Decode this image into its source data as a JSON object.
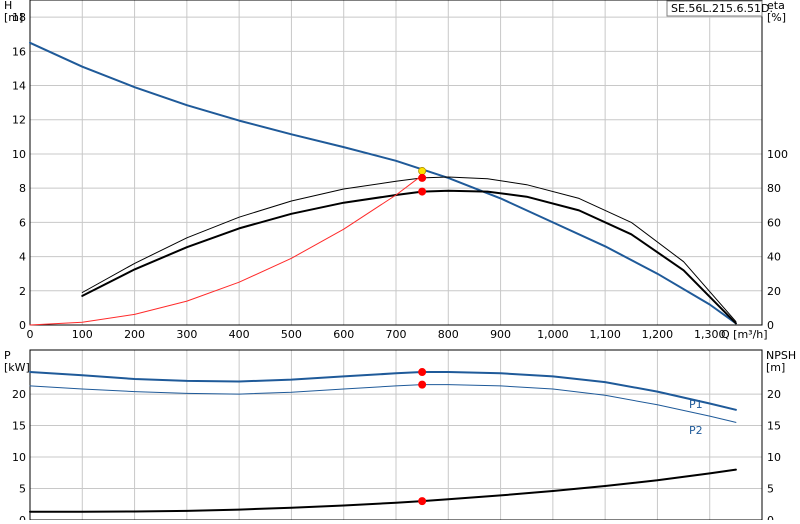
{
  "model": "SE.56L.215.6.51D.",
  "colors": {
    "curve_blue": "#1f5a99",
    "curve_black": "#000000",
    "npsh_red": "#ff2a2a",
    "op_point_red": "#ff0000",
    "op_point_yellow": "#ffe400",
    "grid": "#c8c8c8"
  },
  "chart_data": [
    {
      "type": "line",
      "ylabel_left": "H",
      "yunit_left": "[m]",
      "ylabel_right": "eta",
      "yunit_right": "[%]",
      "xlabel": "Q [m³/h]",
      "xlim": [
        0,
        1400
      ],
      "ylim_left": [
        0,
        19
      ],
      "ylim_right": [
        0,
        190
      ],
      "xticks": [
        0,
        100,
        200,
        300,
        400,
        500,
        600,
        700,
        800,
        900,
        1000,
        1100,
        1200,
        1300
      ],
      "xtick_labels": [
        "0",
        "100",
        "200",
        "300",
        "400",
        "500",
        "600",
        "700",
        "800",
        "900",
        "1,000",
        "1,100",
        "1,200",
        "1,300"
      ],
      "yticks_left": [
        0,
        2,
        4,
        6,
        8,
        10,
        12,
        14,
        16,
        18
      ],
      "yticks_right": [
        0,
        20,
        40,
        60,
        80,
        100
      ],
      "grid": true,
      "series": [
        {
          "axis": "left",
          "color": "#1f5a99",
          "width": 2,
          "x": [
            0,
            100,
            200,
            300,
            400,
            500,
            600,
            700,
            800,
            900,
            1000,
            1100,
            1200,
            1300,
            1350
          ],
          "y": [
            16.5,
            15.1,
            13.9,
            12.85,
            11.95,
            11.15,
            10.4,
            9.6,
            8.6,
            7.4,
            6.0,
            4.6,
            3.0,
            1.2,
            0.1
          ]
        },
        {
          "axis": "right",
          "color": "#000000",
          "width": 1,
          "x": [
            100,
            200,
            300,
            400,
            500,
            600,
            700,
            750,
            800,
            875,
            950,
            1050,
            1150,
            1250,
            1350
          ],
          "y": [
            19,
            36,
            51,
            63,
            72.5,
            79.5,
            84,
            86,
            86.5,
            85.5,
            82,
            74,
            60,
            37,
            2
          ]
        },
        {
          "axis": "right",
          "color": "#000000",
          "width": 2,
          "x": [
            100,
            200,
            300,
            400,
            500,
            600,
            700,
            750,
            800,
            875,
            950,
            1050,
            1150,
            1250,
            1350
          ],
          "y": [
            17,
            32.5,
            45.5,
            56.5,
            65,
            71.5,
            76,
            78,
            78.5,
            78,
            75,
            67,
            53,
            32,
            1
          ]
        },
        {
          "axis": "left",
          "color": "#ff2a2a",
          "width": 1,
          "x": [
            0,
            100,
            200,
            300,
            400,
            500,
            600,
            700,
            750
          ],
          "y": [
            0,
            0.16,
            0.62,
            1.4,
            2.5,
            3.9,
            5.6,
            7.6,
            8.75
          ]
        }
      ],
      "points": [
        {
          "x": 750,
          "y": 9.0,
          "axis": "left",
          "color": "#ffe400"
        },
        {
          "x": 750,
          "y": 86,
          "axis": "right",
          "color": "#ff0000"
        },
        {
          "x": 750,
          "y": 78,
          "axis": "right",
          "color": "#ff0000"
        }
      ]
    },
    {
      "type": "line",
      "ylabel_left": "P",
      "yunit_left": "[kW]",
      "ylabel_right": "NPSH",
      "yunit_right": "[m]",
      "xlim": [
        0,
        1400
      ],
      "ylim_left": [
        0,
        27
      ],
      "ylim_right": [
        0,
        27
      ],
      "xticks": [
        0,
        100,
        200,
        300,
        400,
        500,
        600,
        700,
        800,
        900,
        1000,
        1100,
        1200,
        1300
      ],
      "yticks_left": [
        0,
        5,
        10,
        15,
        20
      ],
      "yticks_right": [
        0,
        5,
        10,
        15,
        20
      ],
      "grid": true,
      "series": [
        {
          "name": "P1",
          "axis": "left",
          "color": "#1f5a99",
          "width": 2,
          "x": [
            0,
            100,
            200,
            300,
            400,
            500,
            600,
            700,
            750,
            800,
            900,
            1000,
            1100,
            1200,
            1300,
            1350
          ],
          "y": [
            23.5,
            23.0,
            22.4,
            22.1,
            22.0,
            22.3,
            22.8,
            23.3,
            23.5,
            23.5,
            23.3,
            22.8,
            21.9,
            20.4,
            18.5,
            17.5
          ]
        },
        {
          "name": "P2",
          "axis": "left",
          "color": "#1f5a99",
          "width": 1,
          "x": [
            0,
            100,
            200,
            300,
            400,
            500,
            600,
            700,
            750,
            800,
            900,
            1000,
            1100,
            1200,
            1300,
            1350
          ],
          "y": [
            21.3,
            20.8,
            20.4,
            20.1,
            20.0,
            20.3,
            20.8,
            21.3,
            21.5,
            21.5,
            21.3,
            20.8,
            19.8,
            18.3,
            16.5,
            15.5
          ]
        },
        {
          "axis": "right",
          "color": "#000000",
          "width": 2,
          "x": [
            0,
            100,
            200,
            300,
            400,
            500,
            600,
            700,
            750,
            800,
            900,
            1000,
            1100,
            1200,
            1300,
            1350
          ],
          "y": [
            1.3,
            1.3,
            1.35,
            1.45,
            1.65,
            1.95,
            2.3,
            2.75,
            3.0,
            3.3,
            3.9,
            4.6,
            5.4,
            6.3,
            7.4,
            8.0
          ]
        }
      ],
      "points": [
        {
          "x": 750,
          "y": 23.5,
          "axis": "left",
          "color": "#ff0000"
        },
        {
          "x": 750,
          "y": 21.5,
          "axis": "left",
          "color": "#ff0000"
        },
        {
          "x": 750,
          "y": 3.0,
          "axis": "right",
          "color": "#ff0000"
        }
      ]
    }
  ]
}
